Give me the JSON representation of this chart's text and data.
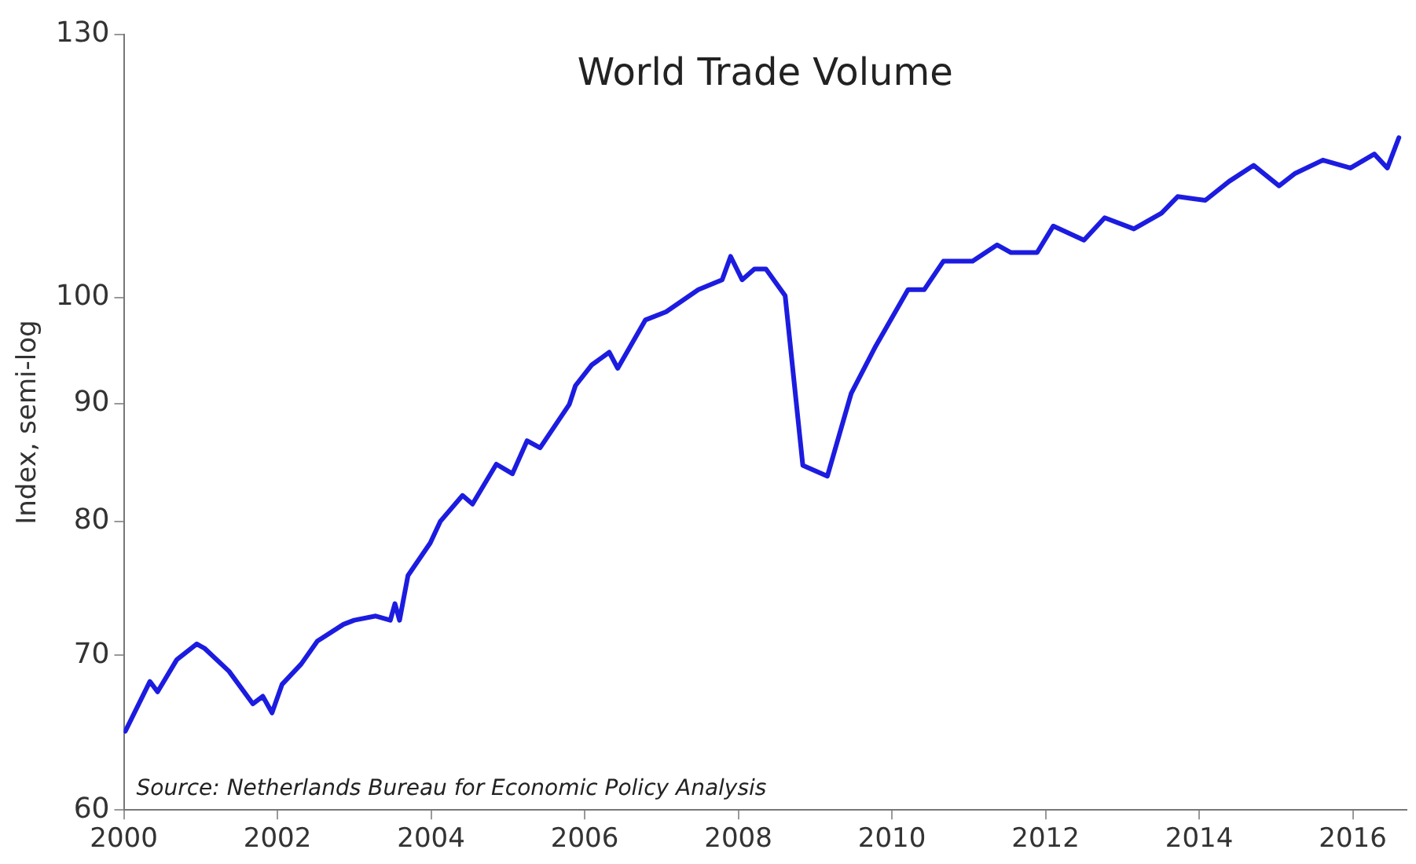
{
  "chart_data": {
    "type": "line",
    "title": "World Trade Volume",
    "ylabel": "Index, semi-log",
    "annotations": [
      "Source: Netherlands Bureau for Economic Policy Analysis"
    ],
    "log": "y",
    "grid": false,
    "legend": false,
    "marker": "none",
    "line_style": "solid",
    "xlim": [
      2000,
      2016.7
    ],
    "xticks": [
      2000,
      2002,
      2004,
      2006,
      2008,
      2010,
      2012,
      2014,
      2016
    ],
    "ylim": [
      60,
      130
    ],
    "yticks": [
      60,
      70,
      80,
      90,
      100,
      130
    ],
    "series": [
      {
        "color": "#1c1ce0",
        "x": [
          2000.02,
          2000.34,
          2000.44,
          2000.69,
          2000.95,
          2001.05,
          2001.37,
          2001.68,
          2001.81,
          2001.93,
          2002.06,
          2002.31,
          2002.52,
          2002.86,
          2003.0,
          2003.28,
          2003.47,
          2003.53,
          2003.59,
          2003.7,
          2003.99,
          2004.12,
          2004.41,
          2004.54,
          2004.85,
          2005.06,
          2005.25,
          2005.42,
          2005.8,
          2005.88,
          2006.09,
          2006.32,
          2006.43,
          2006.79,
          2007.06,
          2007.48,
          2007.79,
          2007.9,
          2008.05,
          2008.21,
          2008.36,
          2008.61,
          2008.84,
          2009.16,
          2009.47,
          2009.79,
          2010.21,
          2010.42,
          2010.67,
          2011.05,
          2011.37,
          2011.55,
          2011.89,
          2012.1,
          2012.5,
          2012.77,
          2013.15,
          2013.51,
          2013.72,
          2014.08,
          2014.39,
          2014.71,
          2015.04,
          2015.25,
          2015.61,
          2015.97,
          2016.28,
          2016.45,
          2016.6
        ],
        "values": [
          64.9,
          68.2,
          67.5,
          69.7,
          70.8,
          70.5,
          68.9,
          66.7,
          67.2,
          66.1,
          68.0,
          69.4,
          71.0,
          72.2,
          72.5,
          72.8,
          72.5,
          73.7,
          72.5,
          75.8,
          78.3,
          80.0,
          82.1,
          81.4,
          84.7,
          83.9,
          86.7,
          86.1,
          89.9,
          91.6,
          93.5,
          94.7,
          93.2,
          97.8,
          98.6,
          100.8,
          101.8,
          104.2,
          101.8,
          102.9,
          102.9,
          100.2,
          84.6,
          83.7,
          90.9,
          95.3,
          100.8,
          100.8,
          103.7,
          103.7,
          105.4,
          104.6,
          104.6,
          107.4,
          105.9,
          108.3,
          107.1,
          108.8,
          110.6,
          110.2,
          112.3,
          114.1,
          111.8,
          113.2,
          114.7,
          113.8,
          115.4,
          113.8,
          117.3
        ]
      }
    ]
  }
}
